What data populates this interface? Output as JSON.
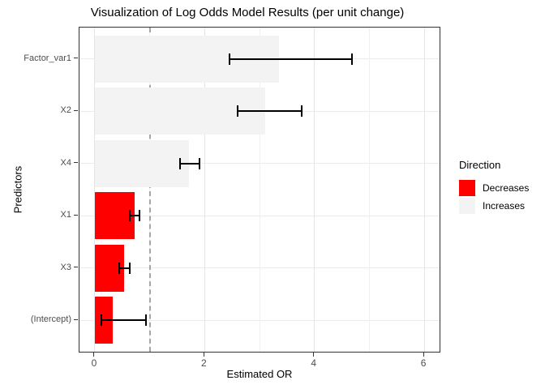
{
  "title": "Visualization of Log Odds Model Results (per unit change)",
  "axes": {
    "x_title": "Estimated OR",
    "y_title": "Predictors"
  },
  "legend": {
    "title": "Direction",
    "entries": [
      {
        "label": "Decreases",
        "color": "#FF0000"
      },
      {
        "label": "Increases",
        "color": "#F3F3F3"
      }
    ]
  },
  "chart_data": {
    "type": "bar",
    "orientation": "horizontal",
    "title": "Visualization of Log Odds Model Results (per unit change)",
    "xlabel": "Estimated OR",
    "ylabel": "Predictors",
    "categories": [
      "Factor_var1",
      "X2",
      "X4",
      "X1",
      "X3",
      "(Intercept)"
    ],
    "values": [
      3.36,
      3.11,
      1.71,
      0.73,
      0.54,
      0.32
    ],
    "ci_low": [
      2.45,
      2.6,
      1.55,
      0.63,
      0.44,
      0.12
    ],
    "ci_high": [
      4.69,
      3.77,
      1.9,
      0.82,
      0.64,
      0.93
    ],
    "direction": [
      "Increases",
      "Increases",
      "Increases",
      "Decreases",
      "Decreases",
      "Decreases"
    ],
    "bar_colors": {
      "Decreases": "#FF0000",
      "Increases": "#F3F3F3"
    },
    "x_ticks": [
      0,
      2,
      4,
      6
    ],
    "x_minor_ticks": [
      1,
      3,
      5
    ],
    "xlim": [
      -0.28,
      6.28
    ],
    "reference_line_x": 1,
    "reference_line_style": "dashed",
    "grid": true,
    "legend_position": "right",
    "colors": {
      "grid_major": "#E4E4E4",
      "grid_minor": "#F0F0F0",
      "grid_horizontal": "#EBEBEB",
      "reference_line": "#A6A6A6",
      "error_bar": "#000000",
      "panel_border": "#333333",
      "tick_text": "#4d4d4d"
    }
  }
}
